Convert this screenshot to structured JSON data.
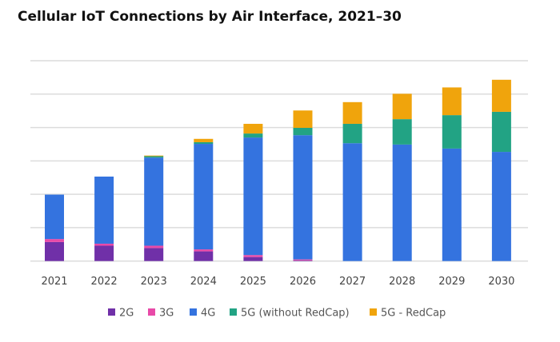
{
  "chart_data": {
    "type": "bar",
    "stacked": true,
    "title": "Cellular IoT Connections  by Air Interface, 2021–30",
    "xlabel": "",
    "ylabel": "",
    "y_tick_labels_shown": false,
    "ylim": [
      0,
      6
    ],
    "grid": true,
    "legend_position": "bottom",
    "categories": [
      "2021",
      "2022",
      "2023",
      "2024",
      "2025",
      "2026",
      "2027",
      "2028",
      "2029",
      "2030"
    ],
    "series": [
      {
        "name": "2G",
        "color": "#7030a8",
        "values": [
          0.57,
          0.46,
          0.39,
          0.29,
          0.12,
          0.02,
          0,
          0,
          0,
          0
        ]
      },
      {
        "name": "3G",
        "color": "#e84aa8",
        "values": [
          0.09,
          0.06,
          0.07,
          0.06,
          0.06,
          0.03,
          0,
          0,
          0,
          0
        ]
      },
      {
        "name": "4G",
        "color": "#3473df",
        "values": [
          1.33,
          2.01,
          2.64,
          3.16,
          3.52,
          3.72,
          3.53,
          3.49,
          3.37,
          3.27
        ]
      },
      {
        "name": "5G (without RedCap)",
        "color": "#22a384",
        "values": [
          0,
          0,
          0.04,
          0.05,
          0.12,
          0.22,
          0.58,
          0.76,
          1.0,
          1.2
        ]
      },
      {
        "name": "5G - RedCap",
        "color": "#f0a40c",
        "values": [
          0,
          0,
          0.02,
          0.1,
          0.29,
          0.52,
          0.65,
          0.76,
          0.83,
          0.96
        ]
      }
    ]
  }
}
